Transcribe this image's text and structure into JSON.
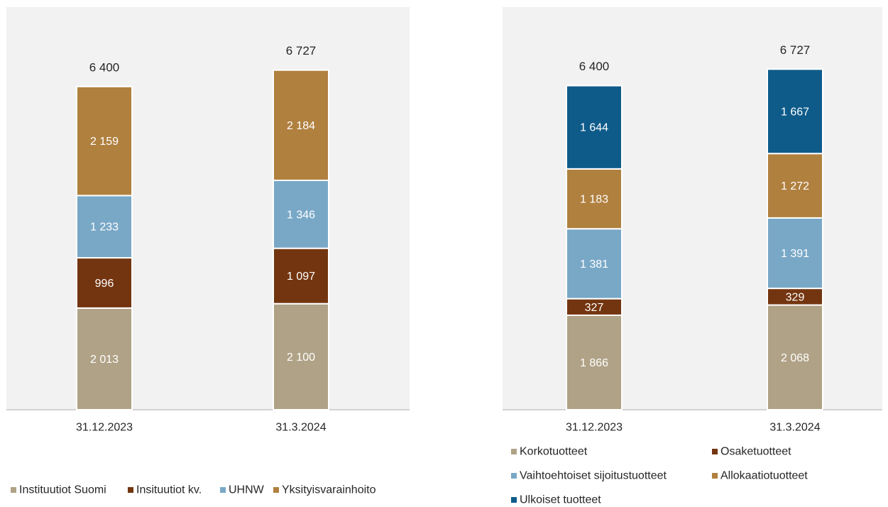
{
  "chart_data": [
    {
      "type": "bar",
      "stacked": true,
      "title": "",
      "xlabel": "",
      "ylabel": "",
      "ylim": [
        0,
        8000
      ],
      "grid": false,
      "legend_position": "bottom",
      "categories": [
        "31.12.2023",
        "31.3.2024"
      ],
      "totals": [
        6400,
        6727
      ],
      "total_labels": [
        "6 400",
        "6 727"
      ],
      "series": [
        {
          "name": "Instituutiot Suomi",
          "color": "#b0a286",
          "values": [
            2013,
            2100
          ],
          "labels": [
            "2 013",
            "2 100"
          ]
        },
        {
          "name": "Insituutiot kv.",
          "color": "#733510",
          "values": [
            996,
            1097
          ],
          "labels": [
            "996",
            "1 097"
          ]
        },
        {
          "name": "UHNW",
          "color": "#79a8c7",
          "values": [
            1233,
            1346
          ],
          "labels": [
            "1 233",
            "1 346"
          ]
        },
        {
          "name": "Yksityisvarainhoito",
          "color": "#b0803f",
          "values": [
            2159,
            2184
          ],
          "labels": [
            "2 159",
            "2 184"
          ]
        }
      ]
    },
    {
      "type": "bar",
      "stacked": true,
      "title": "",
      "xlabel": "",
      "ylabel": "",
      "ylim": [
        0,
        8000
      ],
      "grid": false,
      "legend_position": "bottom",
      "categories": [
        "31.12.2023",
        "31.3.2024"
      ],
      "totals": [
        6400,
        6727
      ],
      "total_labels": [
        "6 400",
        "6 727"
      ],
      "series": [
        {
          "name": "Korkotuotteet",
          "color": "#b0a286",
          "values": [
            1866,
            2068
          ],
          "labels": [
            "1 866",
            "2 068"
          ]
        },
        {
          "name": "Osaketuotteet",
          "color": "#733510",
          "values": [
            327,
            329
          ],
          "labels": [
            "327",
            "329"
          ]
        },
        {
          "name": "Vaihtoehtoiset sijoitustuotteet",
          "color": "#79a8c7",
          "values": [
            1381,
            1391
          ],
          "labels": [
            "1 381",
            "1 391"
          ]
        },
        {
          "name": "Allokaatiotuotteet",
          "color": "#b0803f",
          "values": [
            1183,
            1272
          ],
          "labels": [
            "1 183",
            "1 272"
          ]
        },
        {
          "name": "Ulkoiset tuotteet",
          "color": "#0e5b8a",
          "values": [
            1644,
            1667
          ],
          "labels": [
            "1 644",
            "1 667"
          ]
        }
      ]
    }
  ]
}
